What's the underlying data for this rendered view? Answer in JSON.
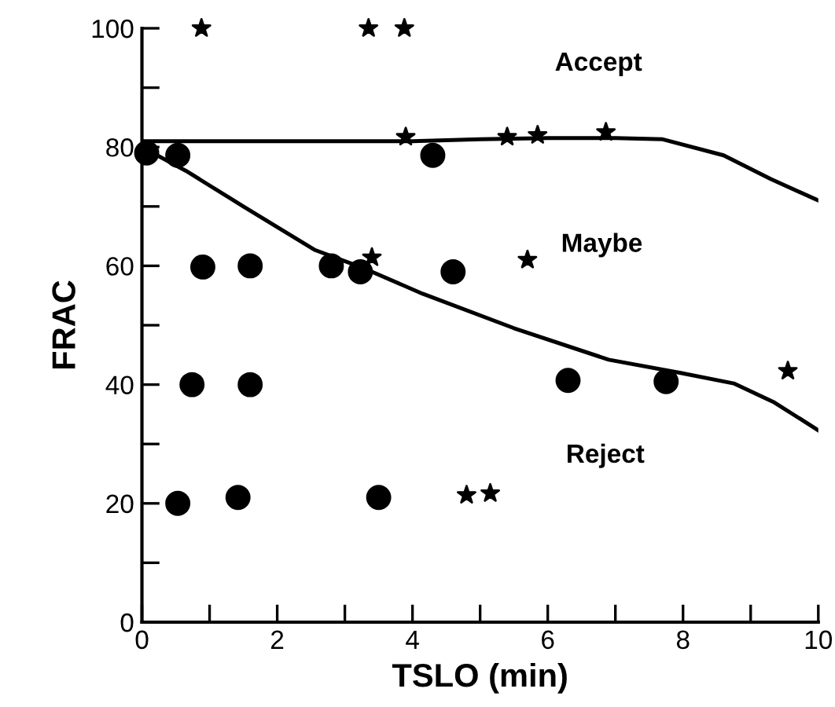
{
  "chart_data": {
    "type": "scatter",
    "xlabel": "TSLO (min)",
    "ylabel": "FRAC",
    "xlim": [
      0,
      10
    ],
    "ylim": [
      0,
      100
    ],
    "xticks": [
      0,
      {
        "value": 1,
        "label": null
      },
      2,
      {
        "value": 3,
        "label": null
      },
      4,
      {
        "value": 5,
        "label": null
      },
      6,
      {
        "value": 7,
        "label": null
      },
      8,
      {
        "value": 9,
        "label": null
      },
      10
    ],
    "yticks": [
      0,
      {
        "value": 10,
        "label": null
      },
      20,
      {
        "value": 30,
        "label": null
      },
      40,
      {
        "value": 50,
        "label": null
      },
      60,
      {
        "value": 70,
        "label": null
      },
      80,
      {
        "value": 90,
        "label": null
      },
      100
    ],
    "grid": false,
    "legend": false,
    "series": [
      {
        "marker": "circle",
        "color": "#000000",
        "x": [
          0.07,
          0.53,
          0.9,
          1.6,
          2.8,
          3.23,
          0.74,
          1.6,
          0.53,
          1.42,
          3.5,
          4.3,
          4.6,
          6.3,
          7.75
        ],
        "values": [
          79,
          78.6,
          59.8,
          60,
          60,
          59,
          40,
          40,
          20,
          21,
          21,
          78.6,
          59,
          40.7,
          40.5
        ]
      },
      {
        "marker": "star",
        "color": "#000000",
        "x": [
          0.88,
          3.35,
          3.88,
          3.9,
          3.4,
          5.4,
          5.85,
          6.86,
          5.7,
          9.55,
          4.8,
          5.15
        ],
        "values": [
          100,
          100,
          100,
          81.7,
          61.4,
          81.7,
          82,
          82.5,
          61,
          42.3,
          21.4,
          21.7
        ]
      },
      {
        "type": "line",
        "marker": "none",
        "line_style": "solid",
        "color": "#000000",
        "x": [
          0,
          1,
          2,
          3,
          4,
          5,
          6,
          7,
          7.7,
          8.6,
          9.3,
          10
        ],
        "values": [
          81,
          81,
          81,
          81,
          81,
          81.3,
          81.5,
          81.5,
          81.3,
          78.6,
          74.6,
          71
        ]
      },
      {
        "type": "line",
        "marker": "none",
        "line_style": "solid",
        "color": "#000000",
        "x": [
          0,
          0.65,
          1.5,
          2.55,
          3.3,
          4.15,
          5.5,
          6.9,
          7.95,
          8.75,
          9.35,
          10
        ],
        "values": [
          80,
          76,
          70,
          62.7,
          59.5,
          55.3,
          49.5,
          44.2,
          42,
          40.2,
          37,
          32.3
        ]
      }
    ],
    "annotations": [
      "Accept",
      "Maybe",
      "Reject"
    ]
  }
}
